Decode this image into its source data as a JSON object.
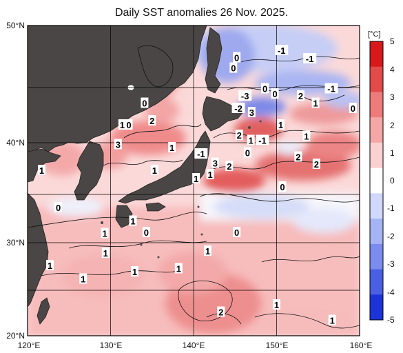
{
  "title": "Daily SST anomalies 26 Nov. 2025.",
  "lat_labels": [
    "50°N",
    "40°N",
    "30°N",
    "20°N"
  ],
  "lon_labels": [
    "120°E",
    "130°E",
    "140°E",
    "150°E",
    "160°E"
  ],
  "colorbar": {
    "unit": "[°C]",
    "ticks": [
      "5",
      "4",
      "3",
      "2",
      "1",
      "0",
      "-1",
      "-2",
      "-3",
      "-4",
      "-5"
    ],
    "colors": [
      "#d7191c",
      "#e34a4a",
      "#ee7b7b",
      "#f5a6a6",
      "#fbd0d0",
      "#ffffff",
      "#d0d8fb",
      "#a6b4f5",
      "#7b8cee",
      "#4a5fe3",
      "#1c34d7"
    ]
  },
  "map": {
    "land_color": "#4a4646",
    "lon_range": [
      120,
      160
    ],
    "lat_range": [
      20,
      50
    ],
    "contour_labels": [
      {
        "text": "0",
        "lon": 145.2,
        "lat": 46.9
      },
      {
        "text": "-1",
        "lon": 150.6,
        "lat": 47.6
      },
      {
        "text": "-1",
        "lon": 154.0,
        "lat": 46.8
      },
      {
        "text": "0",
        "lon": 144.8,
        "lat": 45.9
      },
      {
        "text": "-1",
        "lon": 156.6,
        "lat": 43.9
      },
      {
        "text": "0",
        "lon": 148.6,
        "lat": 43.9
      },
      {
        "text": "2",
        "lon": 152.9,
        "lat": 43.2
      },
      {
        "text": "-3",
        "lon": 146.2,
        "lat": 43.2
      },
      {
        "text": "0",
        "lon": 149.8,
        "lat": 43.4
      },
      {
        "text": "1",
        "lon": 154.7,
        "lat": 42.5
      },
      {
        "text": "0",
        "lon": 159.2,
        "lat": 42.0
      },
      {
        "text": "-2",
        "lon": 145.4,
        "lat": 42.0
      },
      {
        "text": "3",
        "lon": 147.0,
        "lat": 41.6
      },
      {
        "text": "0",
        "lon": 134.1,
        "lat": 42.5
      },
      {
        "text": "2",
        "lon": 135.0,
        "lat": 40.8
      },
      {
        "text": "0",
        "lon": 132.2,
        "lat": 40.4
      },
      {
        "text": "1",
        "lon": 131.4,
        "lat": 40.4
      },
      {
        "text": "1",
        "lon": 150.5,
        "lat": 40.4
      },
      {
        "text": "1",
        "lon": 153.6,
        "lat": 39.3
      },
      {
        "text": "2",
        "lon": 145.5,
        "lat": 39.4
      },
      {
        "text": "1",
        "lon": 146.9,
        "lat": 38.9
      },
      {
        "text": "-1",
        "lon": 148.3,
        "lat": 38.9
      },
      {
        "text": "3",
        "lon": 130.9,
        "lat": 38.5
      },
      {
        "text": "1",
        "lon": 137.4,
        "lat": 38.2
      },
      {
        "text": "-1",
        "lon": 140.9,
        "lat": 37.6
      },
      {
        "text": "0",
        "lon": 146.5,
        "lat": 37.7
      },
      {
        "text": "2",
        "lon": 152.6,
        "lat": 37.3
      },
      {
        "text": "2",
        "lon": 154.8,
        "lat": 36.6
      },
      {
        "text": "3",
        "lon": 142.6,
        "lat": 36.7
      },
      {
        "text": "2",
        "lon": 144.3,
        "lat": 36.4
      },
      {
        "text": "1",
        "lon": 142.0,
        "lat": 35.6
      },
      {
        "text": "1",
        "lon": 140.3,
        "lat": 35.2
      },
      {
        "text": "1",
        "lon": 121.7,
        "lat": 36.0
      },
      {
        "text": "1",
        "lon": 135.3,
        "lat": 36.0
      },
      {
        "text": "0",
        "lon": 150.7,
        "lat": 34.4
      },
      {
        "text": "0",
        "lon": 123.7,
        "lat": 32.4
      },
      {
        "text": "1",
        "lon": 132.7,
        "lat": 31.1
      },
      {
        "text": "1",
        "lon": 129.3,
        "lat": 29.9
      },
      {
        "text": "0",
        "lon": 134.3,
        "lat": 30.0
      },
      {
        "text": "0",
        "lon": 145.2,
        "lat": 30.0
      },
      {
        "text": "1",
        "lon": 141.7,
        "lat": 28.2
      },
      {
        "text": "1",
        "lon": 129.4,
        "lat": 28.0
      },
      {
        "text": "1",
        "lon": 122.7,
        "lat": 26.8
      },
      {
        "text": "1",
        "lon": 132.9,
        "lat": 26.2
      },
      {
        "text": "1",
        "lon": 138.2,
        "lat": 26.5
      },
      {
        "text": "1",
        "lon": 126.7,
        "lat": 25.5
      },
      {
        "text": "1",
        "lon": 150.0,
        "lat": 23.0
      },
      {
        "text": "2",
        "lon": 143.3,
        "lat": 22.3
      },
      {
        "text": "1",
        "lon": 156.7,
        "lat": 21.5
      }
    ]
  }
}
